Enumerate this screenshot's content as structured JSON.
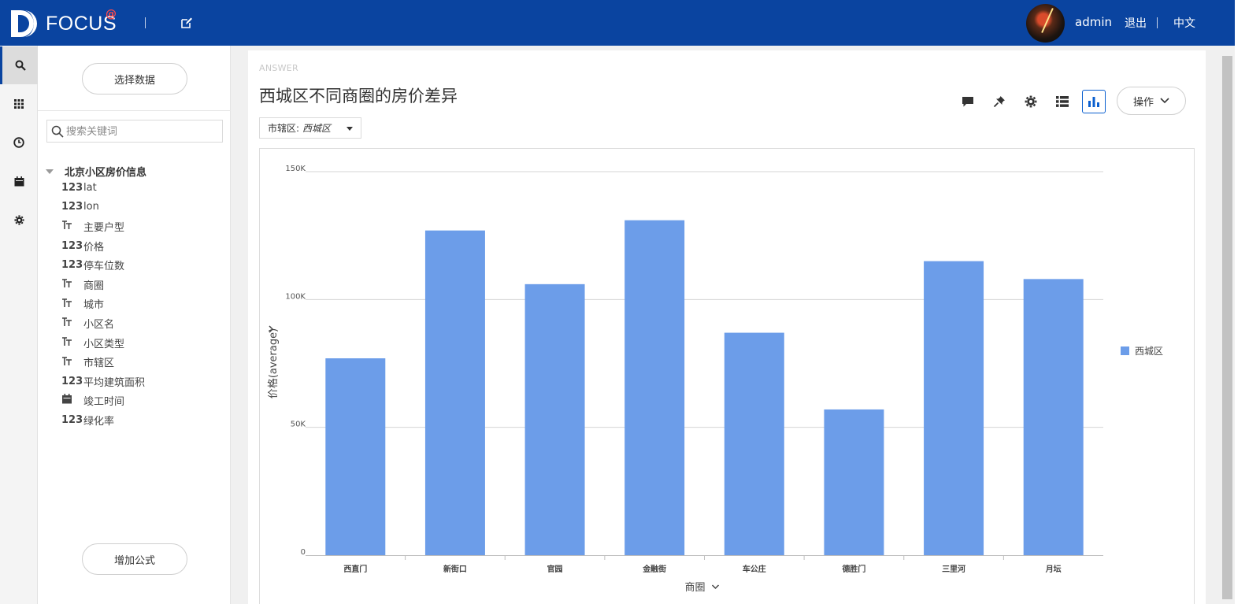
{
  "header": {
    "logo_text": "FOCUS",
    "logo_at": "@",
    "username": "admin",
    "logout_label": "退出",
    "language_label": "中文"
  },
  "rail": {
    "items": [
      {
        "icon": "search-icon",
        "active": true
      },
      {
        "icon": "apps-grid-icon",
        "active": false
      },
      {
        "icon": "history-clock-icon",
        "active": false
      },
      {
        "icon": "calendar-icon",
        "active": false
      },
      {
        "icon": "settings-gear-icon",
        "active": false
      }
    ]
  },
  "datapanel": {
    "select_data_label": "选择数据",
    "search_placeholder": "搜索关键词",
    "table_name": "北京小区房价信息",
    "fields": [
      {
        "type": "123",
        "name": "lat"
      },
      {
        "type": "123",
        "name": "lon"
      },
      {
        "type": "text",
        "name": "主要户型"
      },
      {
        "type": "123",
        "name": "价格"
      },
      {
        "type": "123",
        "name": "停车位数"
      },
      {
        "type": "text",
        "name": "商圈"
      },
      {
        "type": "text",
        "name": "城市"
      },
      {
        "type": "text",
        "name": "小区名"
      },
      {
        "type": "text",
        "name": "小区类型"
      },
      {
        "type": "text",
        "name": "市辖区"
      },
      {
        "type": "123",
        "name": "平均建筑面积"
      },
      {
        "type": "date",
        "name": "竣工时间"
      },
      {
        "type": "123",
        "name": "绿化率"
      }
    ],
    "add_formula_label": "增加公式"
  },
  "answer": {
    "section_label": "ANSWER",
    "title": "西城区不同商圈的房价差异",
    "filter": {
      "label": "市辖区:",
      "value": "西城区"
    },
    "toolbar_icons": [
      "comment-icon",
      "pin-icon",
      "settings-icon",
      "table-view-icon",
      "bar-chart-view-icon"
    ],
    "ops_label": "操作"
  },
  "chart_data": {
    "type": "bar",
    "title": "",
    "xlabel": "商圈",
    "ylabel": "价格(average)",
    "categories": [
      "西直门",
      "新街口",
      "官园",
      "金融街",
      "车公庄",
      "德胜门",
      "三里河",
      "月坛"
    ],
    "series": [
      {
        "name": "西城区",
        "values": [
          77000,
          127000,
          106000,
          131000,
          87000,
          57000,
          115000,
          108000
        ],
        "color": "#6c9de9"
      }
    ],
    "ylim": [
      0,
      150000
    ],
    "yticks": [
      0,
      50000,
      100000,
      150000
    ],
    "ytick_labels": [
      "0",
      "50K",
      "100K",
      "150K"
    ],
    "grid": true,
    "legend_position": "right"
  }
}
